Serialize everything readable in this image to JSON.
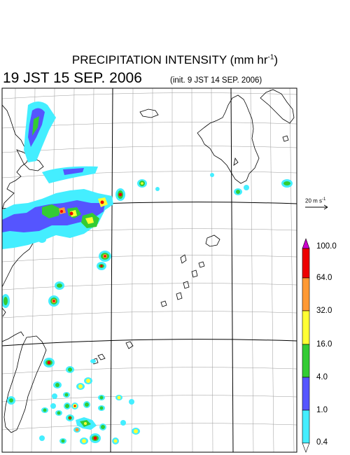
{
  "header": {
    "title": "PRECIPITATION INTENSITY (mm hr",
    "title_sup": "-1",
    "title_close": ")",
    "datetime": "19 JST 15 SEP. 2006",
    "init": "(init. 9 JST 14 SEP. 2006)"
  },
  "vector_legend": {
    "label": "20 m s",
    "sup": "-1"
  },
  "colorbar": {
    "labels": [
      "100.0",
      "64.0",
      "32.0",
      "16.0",
      "4.0",
      "1.0",
      "0.4"
    ],
    "colors": [
      "#cc00cc",
      "#ee0000",
      "#ff9933",
      "#ffff33",
      "#33cc33",
      "#5555ff",
      "#44eeff"
    ],
    "extend_min_color": "#ffffff"
  },
  "map_colors": {
    "outline": "#000000",
    "grid": "#999999"
  }
}
